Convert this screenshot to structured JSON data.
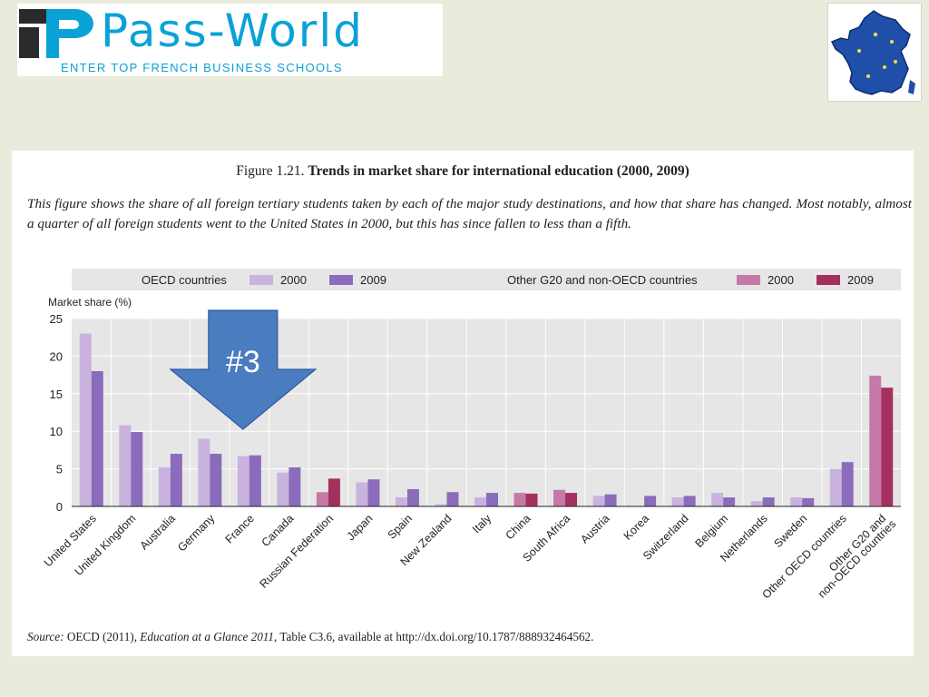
{
  "brand": {
    "name": "Pass-World",
    "tagline": "ENTER TOP FRENCH BUSINESS SCHOOLS",
    "color": "#0aa2d6"
  },
  "figure": {
    "number": "Figure 1.21.",
    "title": "Trends in market share for international education (2000, 2009)",
    "description": "This figure shows the share of all foreign tertiary students taken by each of the major study destinations, and how that share has changed. Most notably, almost a quarter of all foreign students went to the United States in 2000, but this has since fallen to less than a fifth.",
    "source_label": "Source:",
    "source_pre": "OECD (2011),",
    "source_title": "Education at a Glance 2011",
    "source_post": ", Table C3.6, available at http://dx.doi.org/10.1787/888932464562."
  },
  "annotation": {
    "label": "#3",
    "target": "France",
    "color": "#4a7cc0"
  },
  "chart_data": {
    "type": "bar",
    "ylabel": "Market share (%)",
    "ylim": [
      0,
      25
    ],
    "yticks": [
      0,
      5,
      10,
      15,
      20,
      25
    ],
    "grid": true,
    "legend_position": "top",
    "legend_groups": [
      {
        "title": "OECD countries",
        "entries": [
          {
            "name": "2000",
            "color": "#c9b3de"
          },
          {
            "name": "2009",
            "color": "#8b6cbc"
          }
        ]
      },
      {
        "title": "Other G20 and non-OECD countries",
        "entries": [
          {
            "name": "2000",
            "color": "#c679a6"
          },
          {
            "name": "2009",
            "color": "#a3305f"
          }
        ]
      }
    ],
    "categories": [
      "United States",
      "United Kingdom",
      "Australia",
      "Germany",
      "France",
      "Canada",
      "Russian Federation",
      "Japan",
      "Spain",
      "New Zealand",
      "Italy",
      "China",
      "South Africa",
      "Austria",
      "Korea",
      "Switzerland",
      "Belgium",
      "Netherlands",
      "Sweden",
      "Other OECD countries",
      "Other G20 and non-OECD countries"
    ],
    "groups": [
      "oecd",
      "oecd",
      "oecd",
      "oecd",
      "oecd",
      "oecd",
      "other",
      "oecd",
      "oecd",
      "oecd",
      "oecd",
      "other",
      "other",
      "oecd",
      "oecd",
      "oecd",
      "oecd",
      "oecd",
      "oecd",
      "oecd",
      "other"
    ],
    "series": [
      {
        "name": "2000",
        "values": [
          23.0,
          10.8,
          5.2,
          9.0,
          6.7,
          4.5,
          1.9,
          3.2,
          1.2,
          0.3,
          1.2,
          1.8,
          2.2,
          1.4,
          0.0,
          1.2,
          1.8,
          0.7,
          1.2,
          5.0,
          17.4
        ]
      },
      {
        "name": "2009",
        "values": [
          18.0,
          9.9,
          7.0,
          7.0,
          6.8,
          5.2,
          3.7,
          3.6,
          2.3,
          1.9,
          1.8,
          1.7,
          1.8,
          1.6,
          1.4,
          1.4,
          1.2,
          1.2,
          1.1,
          5.9,
          15.8
        ]
      }
    ]
  }
}
